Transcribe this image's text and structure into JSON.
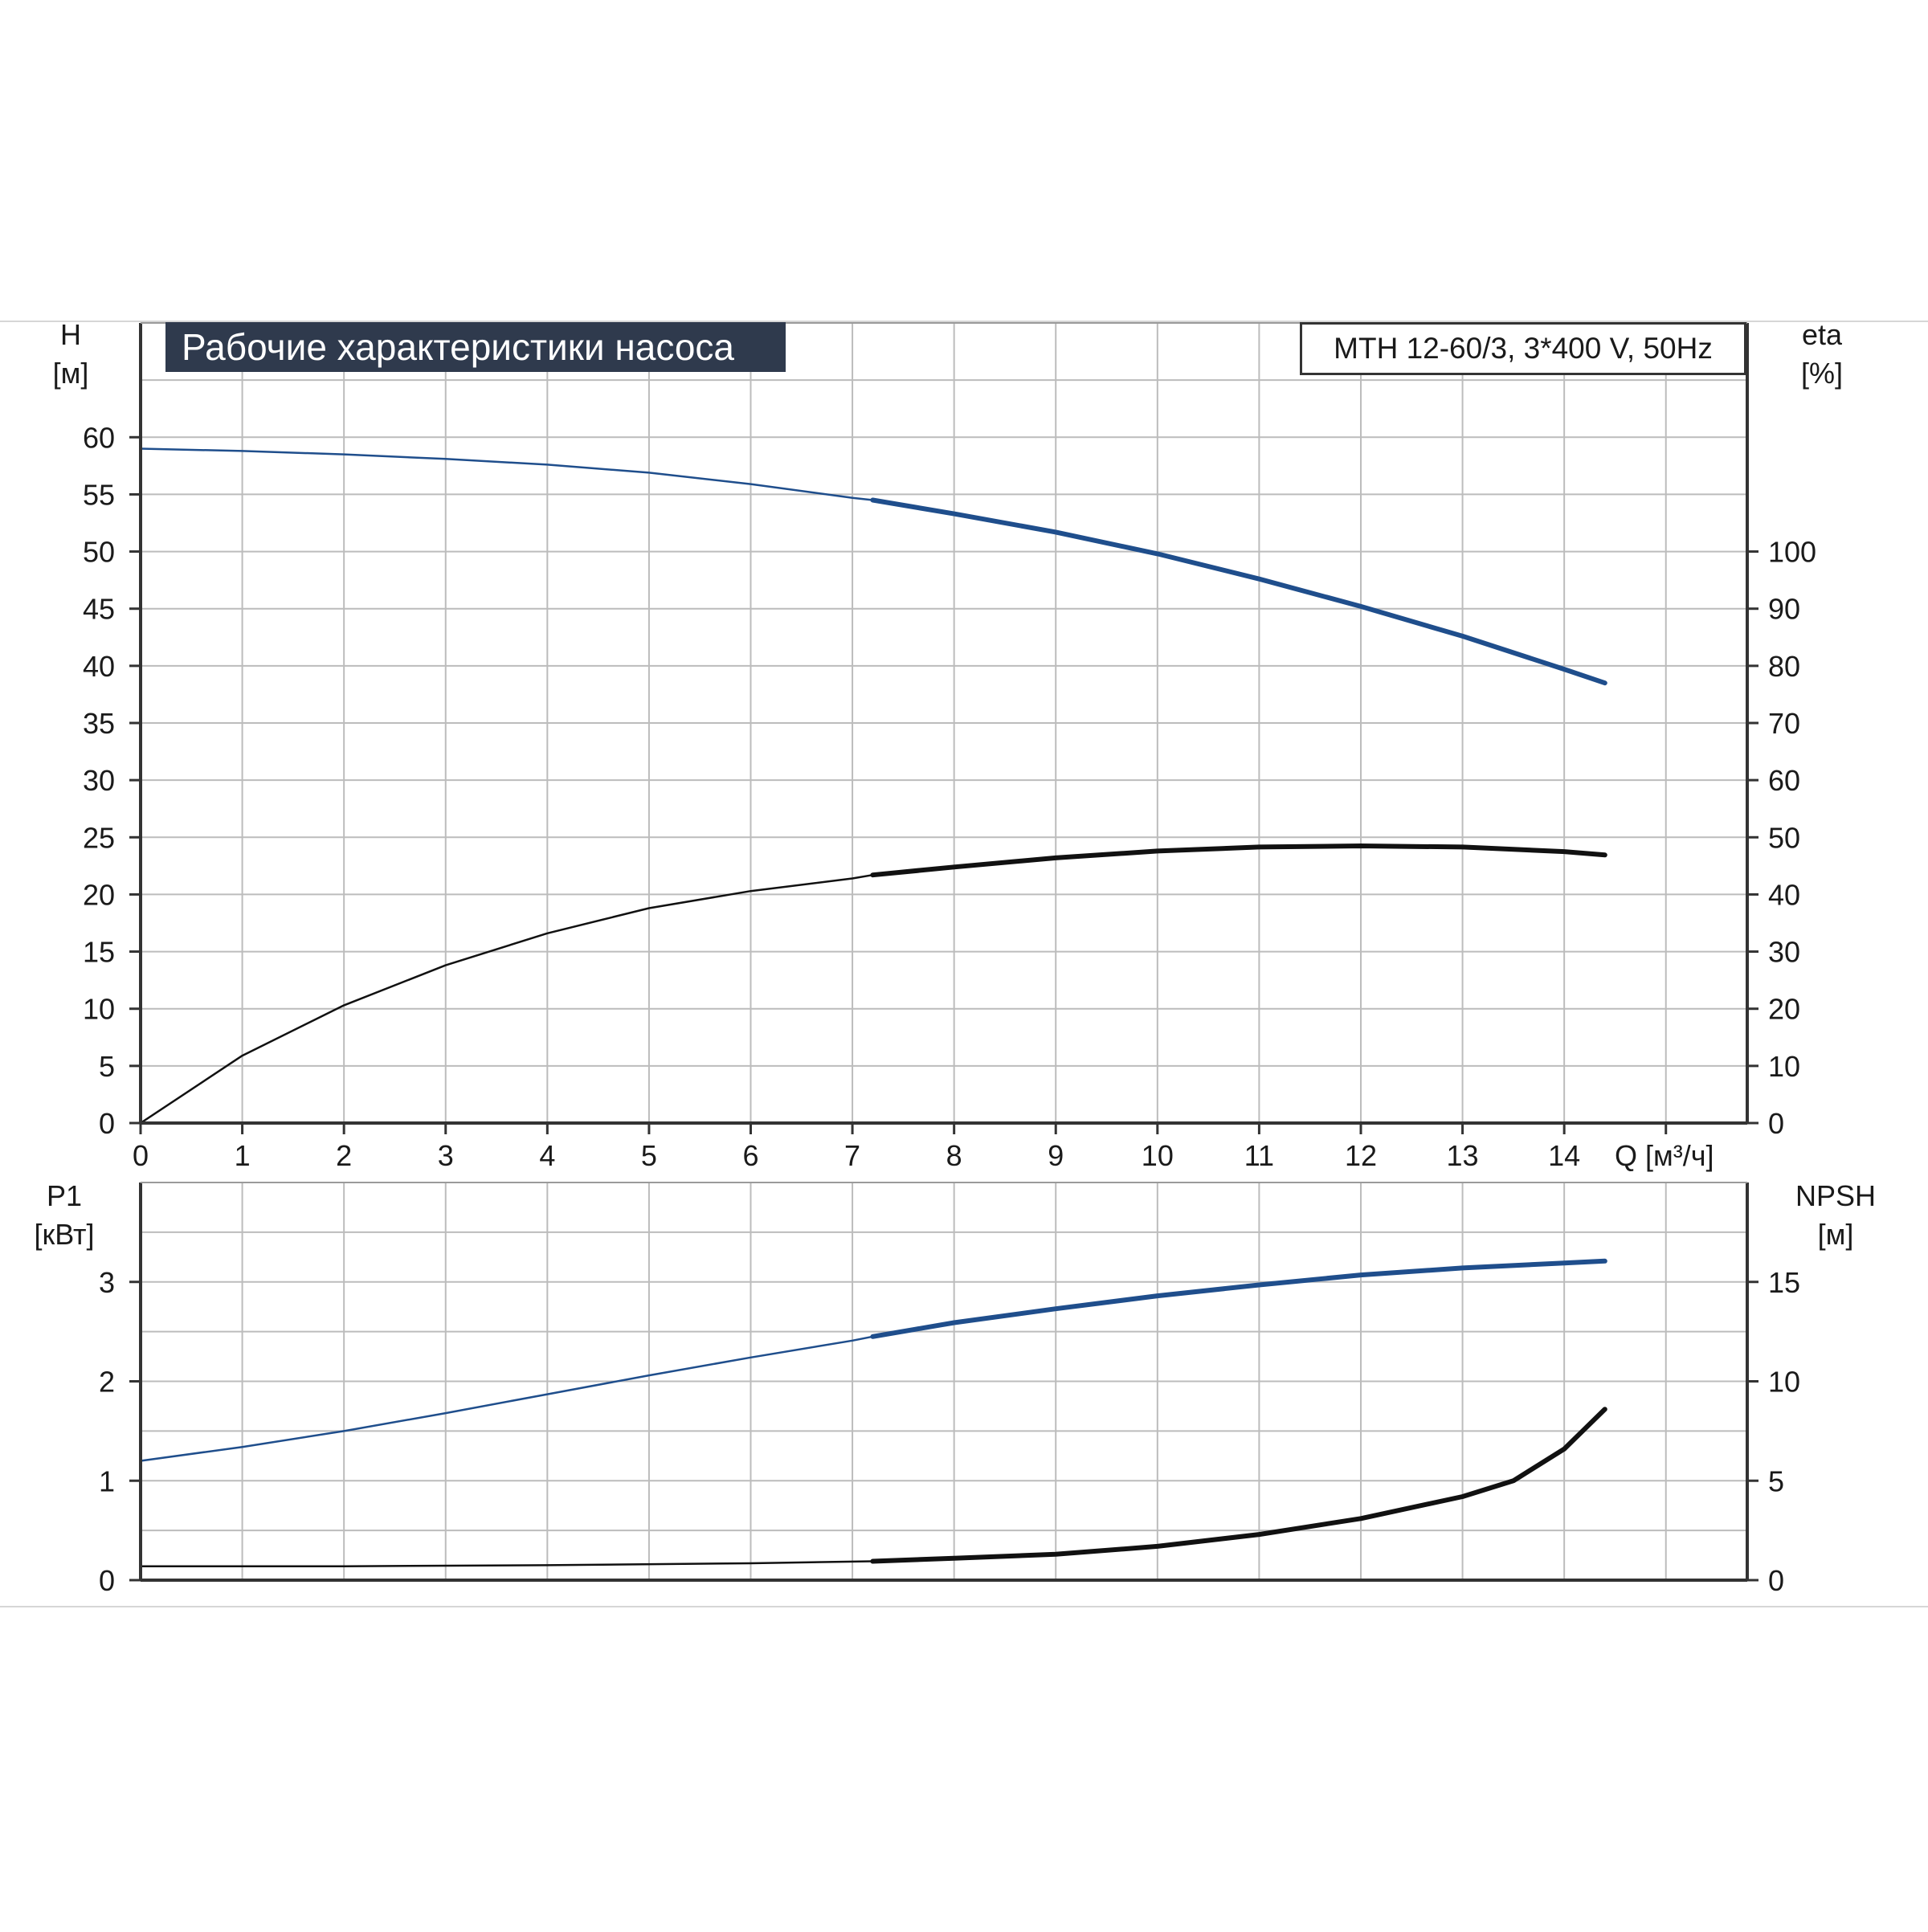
{
  "title": "Рабочие характеристики насоса",
  "model": "MTH 12-60/3, 3*400 V, 50Hz",
  "chart_data": [
    {
      "type": "line",
      "panel": "top",
      "xlabel": "Q [м³/ч]",
      "ylabel": [
        "H",
        "[м]"
      ],
      "y2label": [
        "eta",
        "[%]"
      ],
      "xlim": [
        0,
        15.8
      ],
      "ylim": [
        0,
        70
      ],
      "y2lim": [
        0,
        140
      ],
      "xticks": [
        "0",
        "1",
        "2",
        "3",
        "4",
        "5",
        "6",
        "7",
        "8",
        "9",
        "10",
        "11",
        "12",
        "13",
        "14"
      ],
      "yticks": [
        "0",
        "5",
        "10",
        "15",
        "20",
        "25",
        "30",
        "35",
        "40",
        "45",
        "50",
        "55",
        "60"
      ],
      "y2ticks": [
        "0",
        "10",
        "20",
        "30",
        "40",
        "50",
        "60",
        "70",
        "80",
        "90",
        "100"
      ],
      "grid": true,
      "series": [
        {
          "axis": "left",
          "color": "#1f4e8c",
          "x": [
            0,
            1,
            2,
            3,
            4,
            5,
            6,
            7,
            7.2,
            8,
            9,
            10,
            11,
            12,
            13,
            14,
            14.4
          ],
          "y": [
            59,
            58.8,
            58.5,
            58.1,
            57.6,
            56.9,
            55.9,
            54.7,
            54.5,
            53.3,
            51.7,
            49.8,
            47.6,
            45.2,
            42.6,
            39.7,
            38.5
          ]
        },
        {
          "axis": "right",
          "color": "#111111",
          "x": [
            0,
            1,
            2,
            3,
            4,
            5,
            6,
            7,
            7.2,
            8,
            9,
            10,
            11,
            12,
            13,
            14,
            14.4
          ],
          "y": [
            0,
            11.8,
            20.6,
            27.6,
            33.2,
            37.6,
            40.6,
            42.8,
            43.4,
            44.8,
            46.4,
            47.6,
            48.3,
            48.5,
            48.3,
            47.5,
            46.9
          ]
        }
      ]
    },
    {
      "type": "line",
      "panel": "bottom",
      "ylabel": [
        "P1",
        "[кВт]"
      ],
      "y2label": [
        "NPSH",
        "[м]"
      ],
      "xlim": [
        0,
        15.8
      ],
      "ylim": [
        0,
        4
      ],
      "y2lim": [
        0,
        20
      ],
      "yticks": [
        "0",
        "1",
        "2",
        "3"
      ],
      "y2ticks": [
        "0",
        "5",
        "10",
        "15"
      ],
      "grid": true,
      "series": [
        {
          "axis": "left",
          "color": "#1f4e8c",
          "x": [
            0,
            1,
            2,
            3,
            4,
            5,
            6,
            7,
            7.2,
            8,
            9,
            10,
            11,
            12,
            13,
            14,
            14.4
          ],
          "y": [
            1.2,
            1.34,
            1.5,
            1.68,
            1.87,
            2.06,
            2.24,
            2.41,
            2.45,
            2.59,
            2.73,
            2.86,
            2.97,
            3.07,
            3.14,
            3.19,
            3.21
          ]
        },
        {
          "axis": "right",
          "color": "#111111",
          "x": [
            0,
            2,
            4,
            6,
            7.2,
            8,
            9,
            10,
            11,
            12,
            13,
            13.5,
            14,
            14.4
          ],
          "y": [
            0.7,
            0.7,
            0.75,
            0.85,
            0.95,
            1.1,
            1.3,
            1.7,
            2.3,
            3.1,
            4.2,
            5.0,
            6.6,
            8.6
          ]
        }
      ]
    }
  ]
}
